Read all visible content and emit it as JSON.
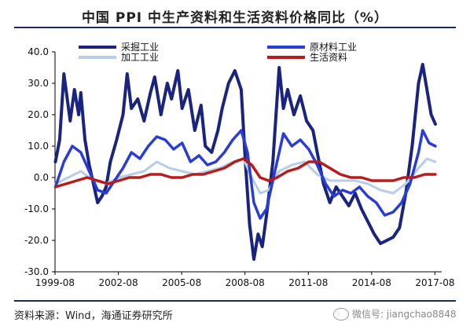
{
  "title": "中国 PPI 中生产资料和生活资料价格同比（%）",
  "source": "资料来源：Wind，海通证券研究所",
  "watermark": "微信号: jiangchao8848",
  "chart_data": {
    "type": "line",
    "title": "中国 PPI 中生产资料和生活资料价格同比（%）",
    "ylim": [
      -30,
      40
    ],
    "yticks": [
      "40.0",
      "30.0",
      "20.0",
      "10.0",
      "0.0",
      "-10.0",
      "-20.0",
      "-30.0"
    ],
    "ytick_values": [
      40,
      30,
      20,
      10,
      0,
      -10,
      -20,
      -30
    ],
    "xlim": [
      1999.58,
      2017.9
    ],
    "xticks": [
      "1999-08",
      "2002-08",
      "2005-08",
      "2008-08",
      "2011-08",
      "2014-08",
      "2017-08"
    ],
    "xtick_values": [
      1999.58,
      2002.58,
      2005.58,
      2008.58,
      2011.58,
      2014.58,
      2017.58
    ],
    "legend_position": "top",
    "series": [
      {
        "name": "采掘工业",
        "color": "#1a237e",
        "x": [
          1999.6,
          1999.8,
          2000.0,
          2000.3,
          2000.5,
          2000.7,
          2000.8,
          2001.0,
          2001.2,
          2001.4,
          2001.6,
          2001.8,
          2002.0,
          2002.2,
          2002.5,
          2002.8,
          2003.0,
          2003.2,
          2003.5,
          2003.8,
          2004.1,
          2004.3,
          2004.6,
          2004.9,
          2005.1,
          2005.4,
          2005.6,
          2005.9,
          2006.2,
          2006.5,
          2006.7,
          2007.0,
          2007.3,
          2007.5,
          2007.8,
          2008.1,
          2008.4,
          2008.6,
          2008.8,
          2009.0,
          2009.2,
          2009.4,
          2009.6,
          2009.9,
          2010.2,
          2010.4,
          2010.6,
          2010.9,
          2011.2,
          2011.5,
          2011.8,
          2012.0,
          2012.3,
          2012.6,
          2012.9,
          2013.2,
          2013.5,
          2013.8,
          2014.1,
          2014.4,
          2014.7,
          2015.0,
          2015.3,
          2015.6,
          2015.9,
          2016.2,
          2016.5,
          2016.8,
          2017.0,
          2017.2,
          2017.4,
          2017.6
        ],
        "y": [
          5,
          12,
          33,
          18,
          28,
          20,
          27,
          12,
          4,
          -2,
          -8,
          -6,
          -3,
          5,
          12,
          20,
          33,
          22,
          25,
          18,
          27,
          32,
          20,
          30,
          25,
          34,
          22,
          28,
          15,
          23,
          10,
          8,
          15,
          22,
          30,
          34,
          28,
          5,
          -15,
          -26,
          -18,
          -22,
          -12,
          5,
          35,
          22,
          28,
          20,
          26,
          18,
          15,
          8,
          -2,
          -8,
          -3,
          -6,
          -9,
          -5,
          -10,
          -14,
          -18,
          -21,
          -20,
          -19,
          -16,
          -5,
          10,
          30,
          36,
          28,
          20,
          17
        ]
      },
      {
        "name": "原材料工业",
        "color": "#2a3cd6",
        "x": [
          1999.6,
          2000.0,
          2000.4,
          2000.8,
          2001.2,
          2001.6,
          2002.0,
          2002.4,
          2002.8,
          2003.2,
          2003.6,
          2004.0,
          2004.4,
          2004.8,
          2005.2,
          2005.6,
          2006.0,
          2006.4,
          2006.8,
          2007.2,
          2007.6,
          2008.0,
          2008.4,
          2008.7,
          2009.0,
          2009.3,
          2009.6,
          2010.0,
          2010.4,
          2010.8,
          2011.2,
          2011.6,
          2012.0,
          2012.4,
          2012.8,
          2013.2,
          2013.6,
          2014.0,
          2014.4,
          2014.8,
          2015.2,
          2015.6,
          2016.0,
          2016.4,
          2016.8,
          2017.0,
          2017.3,
          2017.6
        ],
        "y": [
          -3,
          5,
          10,
          8,
          2,
          -4,
          -5,
          -1,
          3,
          8,
          6,
          10,
          13,
          12,
          9,
          11,
          5,
          7,
          4,
          5,
          8,
          12,
          15,
          8,
          -8,
          -13,
          -10,
          2,
          14,
          10,
          12,
          9,
          4,
          -2,
          -6,
          -4,
          -5,
          -3,
          -6,
          -8,
          -12,
          -11,
          -8,
          -2,
          8,
          15,
          11,
          10
        ]
      },
      {
        "name": "加工工业",
        "color": "#b7cde8",
        "x": [
          1999.6,
          2000.2,
          2000.8,
          2001.4,
          2002.0,
          2002.6,
          2003.2,
          2003.8,
          2004.4,
          2005.0,
          2005.6,
          2006.2,
          2006.8,
          2007.4,
          2008.0,
          2008.5,
          2008.9,
          2009.3,
          2009.7,
          2010.2,
          2010.8,
          2011.4,
          2012.0,
          2012.6,
          2013.2,
          2013.8,
          2014.4,
          2015.0,
          2015.6,
          2016.2,
          2016.8,
          2017.2,
          2017.6
        ],
        "y": [
          -2,
          0,
          2,
          -1,
          -2,
          0,
          1,
          2,
          5,
          3,
          2,
          1,
          2,
          3,
          5,
          6,
          0,
          -5,
          -4,
          2,
          4,
          5,
          1,
          -1,
          -1,
          -1,
          -2,
          -4,
          -5,
          -2,
          3,
          6,
          5
        ]
      },
      {
        "name": "生活资料",
        "color": "#b71c1c",
        "x": [
          1999.6,
          2000.1,
          2000.6,
          2001.1,
          2001.6,
          2002.1,
          2002.6,
          2003.1,
          2003.6,
          2004.1,
          2004.6,
          2005.1,
          2005.6,
          2006.1,
          2006.6,
          2007.1,
          2007.6,
          2008.1,
          2008.5,
          2008.9,
          2009.3,
          2009.7,
          2010.1,
          2010.6,
          2011.1,
          2011.6,
          2012.1,
          2012.6,
          2013.1,
          2013.6,
          2014.1,
          2014.6,
          2015.1,
          2015.6,
          2016.1,
          2016.6,
          2017.1,
          2017.6
        ],
        "y": [
          -3,
          -2,
          -1,
          0,
          -1,
          -2,
          -1,
          0,
          0,
          1,
          1,
          0,
          0,
          1,
          1,
          2,
          3,
          5,
          6,
          4,
          0,
          -1,
          0,
          2,
          3,
          5,
          5,
          3,
          1,
          0,
          0,
          -1,
          -1,
          -1,
          0,
          0,
          1,
          1
        ]
      }
    ]
  }
}
